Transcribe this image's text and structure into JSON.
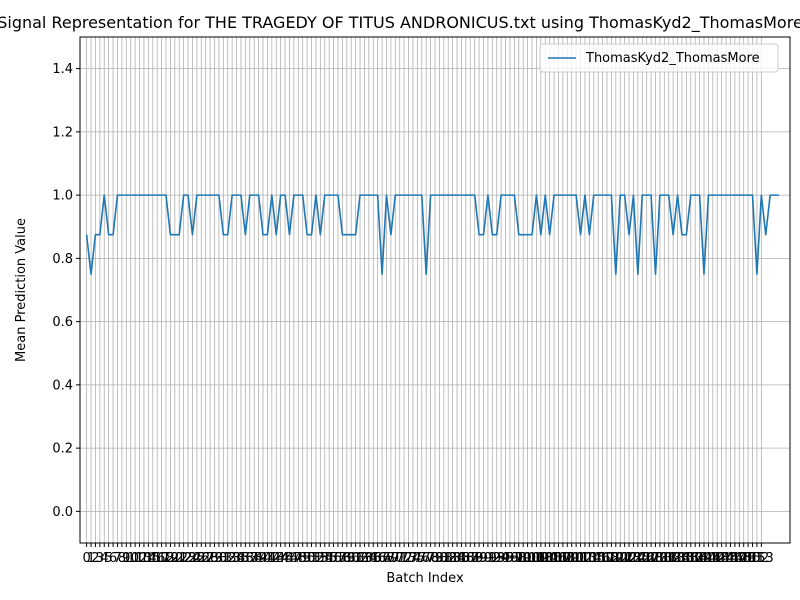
{
  "chart_data": {
    "type": "line",
    "title": "Signal Representation for THE TRAGEDY OF TITUS ANDRONICUS.txt using ThomasKyd2_ThomasMore",
    "xlabel": "Batch Index",
    "ylabel": "Mean Prediction Value",
    "ylim": [
      -0.1,
      1.5
    ],
    "yticks": [
      0.0,
      0.2,
      0.4,
      0.6,
      0.8,
      1.0,
      1.2,
      1.4
    ],
    "ytick_labels": [
      "0.0",
      "0.2",
      "0.4",
      "0.6",
      "0.8",
      "1.0",
      "1.2",
      "1.4"
    ],
    "xlim": [
      -1.5,
      159.5
    ],
    "xticks_start": 0,
    "xticks_end": 153,
    "grid": true,
    "legend": "top-right",
    "line_color": "#1f77b4",
    "series": [
      {
        "name": "ThomasKyd2_ThomasMore",
        "x_start": 0,
        "values": [
          0.875,
          0.75,
          0.875,
          0.875,
          1.0,
          0.875,
          0.875,
          1.0,
          1.0,
          1.0,
          1.0,
          1.0,
          1.0,
          1.0,
          1.0,
          1.0,
          1.0,
          1.0,
          1.0,
          0.875,
          0.875,
          0.875,
          1.0,
          1.0,
          0.875,
          1.0,
          1.0,
          1.0,
          1.0,
          1.0,
          1.0,
          0.875,
          0.875,
          1.0,
          1.0,
          1.0,
          0.875,
          1.0,
          1.0,
          1.0,
          0.875,
          0.875,
          1.0,
          0.875,
          1.0,
          1.0,
          0.875,
          1.0,
          1.0,
          1.0,
          0.875,
          0.875,
          1.0,
          0.875,
          1.0,
          1.0,
          1.0,
          1.0,
          0.875,
          0.875,
          0.875,
          0.875,
          1.0,
          1.0,
          1.0,
          1.0,
          1.0,
          0.75,
          1.0,
          0.875,
          1.0,
          1.0,
          1.0,
          1.0,
          1.0,
          1.0,
          1.0,
          0.75,
          1.0,
          1.0,
          1.0,
          1.0,
          1.0,
          1.0,
          1.0,
          1.0,
          1.0,
          1.0,
          1.0,
          0.875,
          0.875,
          1.0,
          0.875,
          0.875,
          1.0,
          1.0,
          1.0,
          1.0,
          0.875,
          0.875,
          0.875,
          0.875,
          1.0,
          0.875,
          1.0,
          0.875,
          1.0,
          1.0,
          1.0,
          1.0,
          1.0,
          1.0,
          0.875,
          1.0,
          0.875,
          1.0,
          1.0,
          1.0,
          1.0,
          1.0,
          0.75,
          1.0,
          1.0,
          0.875,
          1.0,
          0.75,
          1.0,
          1.0,
          1.0,
          0.75,
          1.0,
          1.0,
          1.0,
          0.875,
          1.0,
          0.875,
          0.875,
          1.0,
          1.0,
          1.0,
          0.75,
          1.0,
          1.0,
          1.0,
          1.0,
          1.0,
          1.0,
          1.0,
          1.0,
          1.0,
          1.0,
          1.0,
          0.75,
          1.0,
          0.875,
          1.0,
          1.0,
          1.0
        ]
      }
    ]
  }
}
